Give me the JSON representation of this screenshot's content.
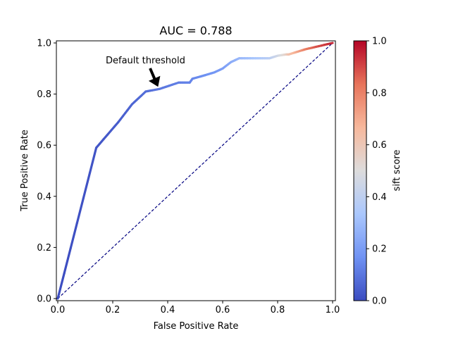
{
  "chart_data": {
    "type": "line",
    "title": "AUC = 0.788",
    "xlabel": "False Positive Rate",
    "ylabel": "True Positive Rate",
    "xlim": [
      0,
      1
    ],
    "ylim": [
      0,
      1
    ],
    "xticks": [
      0.0,
      0.2,
      0.4,
      0.6,
      0.8,
      1.0
    ],
    "xtick_labels": [
      "0.0",
      "0.2",
      "0.4",
      "0.6",
      "0.8",
      "1.0"
    ],
    "yticks": [
      0.0,
      0.2,
      0.4,
      0.6,
      0.8,
      1.0
    ],
    "ytick_labels": [
      "0.0",
      "0.2",
      "0.4",
      "0.6",
      "0.8",
      "1.0"
    ],
    "grid": false,
    "roc_curve": [
      {
        "x": 0.0,
        "y": 0.0,
        "score": 0.0
      },
      {
        "x": 0.14,
        "y": 0.59,
        "score": 0.02
      },
      {
        "x": 0.22,
        "y": 0.69,
        "score": 0.04
      },
      {
        "x": 0.27,
        "y": 0.76,
        "score": 0.06
      },
      {
        "x": 0.32,
        "y": 0.81,
        "score": 0.08
      },
      {
        "x": 0.37,
        "y": 0.82,
        "score": 0.1
      },
      {
        "x": 0.44,
        "y": 0.845,
        "score": 0.12
      },
      {
        "x": 0.48,
        "y": 0.845,
        "score": 0.13
      },
      {
        "x": 0.49,
        "y": 0.86,
        "score": 0.14
      },
      {
        "x": 0.53,
        "y": 0.872,
        "score": 0.16
      },
      {
        "x": 0.57,
        "y": 0.885,
        "score": 0.18
      },
      {
        "x": 0.6,
        "y": 0.9,
        "score": 0.2
      },
      {
        "x": 0.63,
        "y": 0.925,
        "score": 0.24
      },
      {
        "x": 0.66,
        "y": 0.94,
        "score": 0.28
      },
      {
        "x": 0.72,
        "y": 0.94,
        "score": 0.33
      },
      {
        "x": 0.77,
        "y": 0.94,
        "score": 0.38
      },
      {
        "x": 0.8,
        "y": 0.95,
        "score": 0.45
      },
      {
        "x": 0.83,
        "y": 0.955,
        "score": 0.55
      },
      {
        "x": 0.84,
        "y": 0.955,
        "score": 0.62
      },
      {
        "x": 0.87,
        "y": 0.965,
        "score": 0.7
      },
      {
        "x": 0.9,
        "y": 0.975,
        "score": 0.8
      },
      {
        "x": 0.94,
        "y": 0.985,
        "score": 0.88
      },
      {
        "x": 1.0,
        "y": 1.0,
        "score": 0.95
      }
    ],
    "diagonal": {
      "x": [
        0,
        1
      ],
      "y": [
        0,
        1
      ],
      "style": "dashed",
      "color": "#000080"
    },
    "annotation": {
      "text": "Default threshold",
      "point_x": 0.37,
      "point_y": 0.82
    },
    "colorbar": {
      "label": "sift score",
      "range": [
        0.0,
        1.0
      ],
      "ticks": [
        0.0,
        0.2,
        0.4,
        0.6,
        0.8,
        1.0
      ],
      "tick_labels": [
        "0.0",
        "0.2",
        "0.4",
        "0.6",
        "0.8",
        "1.0"
      ],
      "colormap": "coolwarm",
      "colormap_stops": [
        "#3b4cc0",
        "#6f92f3",
        "#aac7fd",
        "#dddcdc",
        "#f7b89c",
        "#e7745b",
        "#b40426"
      ]
    }
  }
}
